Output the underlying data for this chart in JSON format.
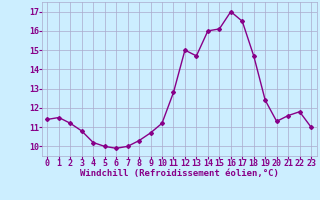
{
  "x": [
    0,
    1,
    2,
    3,
    4,
    5,
    6,
    7,
    8,
    9,
    10,
    11,
    12,
    13,
    14,
    15,
    16,
    17,
    18,
    19,
    20,
    21,
    22,
    23
  ],
  "y": [
    11.4,
    11.5,
    11.2,
    10.8,
    10.2,
    10.0,
    9.9,
    10.0,
    10.3,
    10.7,
    11.2,
    12.8,
    15.0,
    14.7,
    16.0,
    16.1,
    17.0,
    16.5,
    14.7,
    12.4,
    11.3,
    11.6,
    11.8,
    11.0
  ],
  "line_color": "#880088",
  "marker": "D",
  "marker_size": 2.0,
  "bg_color": "#cceeff",
  "grid_color": "#aaaacc",
  "xlabel": "Windchill (Refroidissement éolien,°C)",
  "xlabel_color": "#880088",
  "xlabel_fontsize": 6.5,
  "xtick_labels": [
    "0",
    "1",
    "2",
    "3",
    "4",
    "5",
    "6",
    "7",
    "8",
    "9",
    "10",
    "11",
    "12",
    "13",
    "14",
    "15",
    "16",
    "17",
    "18",
    "19",
    "20",
    "21",
    "22",
    "23"
  ],
  "ytick_labels": [
    "10",
    "11",
    "12",
    "13",
    "14",
    "15",
    "16",
    "17"
  ],
  "yticks": [
    10,
    11,
    12,
    13,
    14,
    15,
    16,
    17
  ],
  "ylim": [
    9.5,
    17.5
  ],
  "xlim": [
    -0.5,
    23.5
  ],
  "tick_color": "#880088",
  "tick_fontsize": 6.0,
  "line_width": 1.0
}
